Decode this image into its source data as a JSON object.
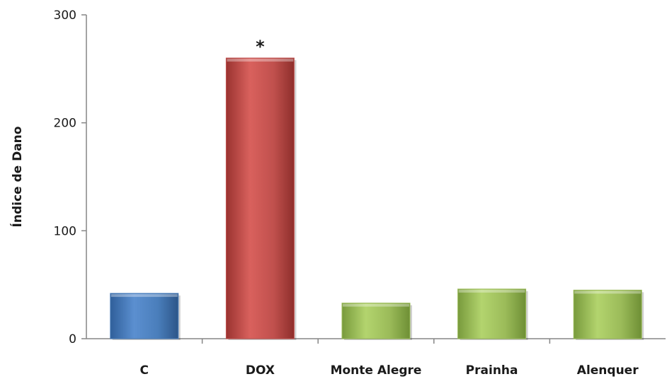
{
  "chart_data": {
    "type": "bar",
    "title": "",
    "xlabel": "",
    "ylabel": "Índice de Dano",
    "ylim": [
      0,
      300
    ],
    "yticks": [
      0,
      100,
      200,
      300
    ],
    "grid": false,
    "legend": "none",
    "categories": [
      "C",
      "DOX",
      "Monte Alegre",
      "Prainha",
      "Alenquer"
    ],
    "values": [
      42,
      260,
      33,
      46,
      45
    ],
    "colors": [
      "#4a7ebb",
      "#c0504d",
      "#9bbb59",
      "#9bbb59",
      "#9bbb59"
    ],
    "annotations": [
      "",
      "*",
      "",
      "",
      ""
    ]
  }
}
